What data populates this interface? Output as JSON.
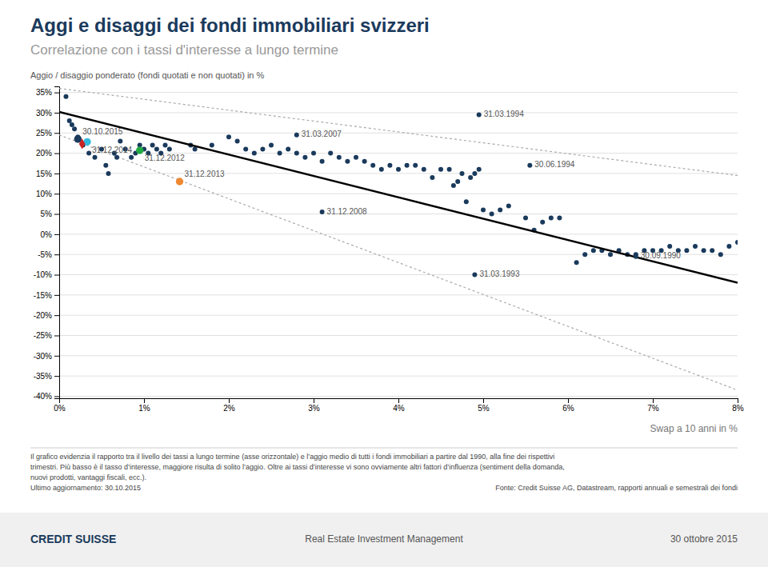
{
  "chart_data": {
    "type": "scatter",
    "title": "Aggi e disaggi dei fondi immobiliari svizzeri",
    "subtitle": "Correlazione con i tassi d'interesse a lungo termine",
    "y_label": "Aggio / disaggio ponderato (fondi quotati e non quotati) in %",
    "x_label": "Swap a 10 anni in %",
    "color": "#1a3a5c",
    "x": [
      0.08,
      0.12,
      0.15,
      0.18,
      0.22,
      0.28,
      0.35,
      0.42,
      0.5,
      0.55,
      0.58,
      0.65,
      0.68,
      0.72,
      0.78,
      0.85,
      0.9,
      0.95,
      1.0,
      1.05,
      1.1,
      1.15,
      1.2,
      1.25,
      1.3,
      1.55,
      1.6,
      1.8,
      2.0,
      2.1,
      2.2,
      2.3,
      2.4,
      2.5,
      2.6,
      2.7,
      2.8,
      2.9,
      3.0,
      3.1,
      3.2,
      3.3,
      3.4,
      3.5,
      3.6,
      3.7,
      3.8,
      3.9,
      4.0,
      4.1,
      4.2,
      4.3,
      4.4,
      4.5,
      4.6,
      4.65,
      4.7,
      4.75,
      4.8,
      4.85,
      4.9,
      4.95,
      5.0,
      5.1,
      5.2,
      5.3,
      5.5,
      5.6,
      5.7,
      5.8,
      5.9,
      6.1,
      6.2,
      6.3,
      6.4,
      6.5,
      6.6,
      6.7,
      6.8,
      6.9,
      7.0,
      7.1,
      7.2,
      7.3,
      7.4,
      7.5,
      7.6,
      7.7,
      7.8,
      7.9,
      8.0
    ],
    "values": [
      34,
      28,
      27,
      26,
      24,
      22,
      20,
      19,
      21,
      17,
      15,
      20,
      19,
      23,
      21,
      19,
      20,
      22,
      21,
      20,
      22,
      21,
      20,
      22,
      21,
      22,
      21,
      22,
      24,
      23,
      21,
      20,
      21,
      22,
      20,
      21,
      20,
      19,
      20,
      18,
      20,
      19,
      18,
      19,
      18,
      17,
      16,
      17,
      16,
      17,
      17,
      16,
      14,
      16,
      16,
      12,
      13,
      15,
      8,
      14,
      15,
      16,
      6,
      5,
      6,
      7,
      4,
      1,
      3,
      4,
      4,
      -7,
      -5,
      -4,
      -4,
      -5,
      -4,
      -5,
      -5,
      -4,
      -4,
      -4,
      -3,
      -4,
      -4,
      -3,
      -4,
      -4,
      -5,
      -3,
      -2
    ],
    "series": [
      {
        "type": "line",
        "color": "#000000",
        "line_style": "solid",
        "x": [
          0.0,
          8.0
        ],
        "values": [
          30.2,
          -12.0
        ]
      },
      {
        "type": "line",
        "color": "#aaaaaa",
        "line_style": "dotted",
        "x": [
          0.0,
          8.0
        ],
        "values": [
          36.0,
          14.5
        ]
      },
      {
        "type": "line",
        "color": "#aaaaaa",
        "line_style": "dotted",
        "x": [
          0.0,
          8.0
        ],
        "values": [
          24.5,
          -38.5
        ]
      }
    ],
    "annotations": [
      {
        "x": 4.95,
        "y": 29.5,
        "label": "31.03.1994"
      },
      {
        "x": 2.8,
        "y": 24.5,
        "label": "31.03.2007"
      },
      {
        "x": 5.55,
        "y": 17.0,
        "label": "30.06.1994"
      },
      {
        "x": 3.1,
        "y": 5.5,
        "label": "31.12.2008"
      },
      {
        "x": 6.8,
        "y": -5.5,
        "label": "30.09.1990"
      },
      {
        "x": 4.9,
        "y": -10.0,
        "label": "31.03.1993"
      }
    ],
    "highlights": [
      {
        "x": 0.22,
        "y": 23.5,
        "label": "30.10.2015",
        "color": "#1a3a5c",
        "marker": "circle"
      },
      {
        "x": 0.33,
        "y": 22.8,
        "label": "31.12.2014",
        "color": "#33bbdd",
        "marker": "circle"
      },
      {
        "x": 0.27,
        "y": 22.3,
        "color": "#cc2222",
        "marker": "diamond"
      },
      {
        "x": 0.95,
        "y": 20.7,
        "label": "31.12.2012",
        "color": "#22aa44",
        "marker": "circle"
      },
      {
        "x": 1.42,
        "y": 13.0,
        "label": "31.12.2013",
        "color": "#ee8833",
        "marker": "circle"
      }
    ],
    "xlim": [
      0.0,
      8.0
    ],
    "ylim": [
      -40.5,
      36.5
    ],
    "xticks": [
      {
        "value": 0,
        "label": "0%"
      },
      {
        "value": 1,
        "label": "1%"
      },
      {
        "value": 2,
        "label": "2%"
      },
      {
        "value": 3,
        "label": "3%"
      },
      {
        "value": 4,
        "label": "4%"
      },
      {
        "value": 5,
        "label": "5%"
      },
      {
        "value": 6,
        "label": "6%"
      },
      {
        "value": 7,
        "label": "7%"
      },
      {
        "value": 8,
        "label": "8%"
      }
    ],
    "yticks": [
      {
        "value": -40,
        "label": "-40%"
      },
      {
        "value": -35,
        "label": "-35%"
      },
      {
        "value": -30,
        "label": "-30%"
      },
      {
        "value": -25,
        "label": "-25%"
      },
      {
        "value": -20,
        "label": "-20%"
      },
      {
        "value": -15,
        "label": "-15%"
      },
      {
        "value": -10,
        "label": "-10%"
      },
      {
        "value": -5,
        "label": "-5%"
      },
      {
        "value": 0,
        "label": "0%"
      },
      {
        "value": 5,
        "label": "5%"
      },
      {
        "value": 10,
        "label": "10%"
      },
      {
        "value": 15,
        "label": "15%"
      },
      {
        "value": 20,
        "label": "20%"
      },
      {
        "value": 25,
        "label": "25%"
      },
      {
        "value": 30,
        "label": "30%"
      },
      {
        "value": 35,
        "label": "35%"
      }
    ],
    "grid": "y",
    "footer_notes": [
      "Il grafico evidenzia il rapporto tra il livello dei tassi a lungo termine (asse orizzontale) e l’aggio medio di tutti i fondi immobiliari a partire dal 1990, alla fine dei rispettivi",
      "trimestri. Più basso è il tasso d’interesse, maggiore risulta di solito l’aggio. Oltre ai tassi d’interesse vi sono ovviamente altri fattori d’influenza (sentiment della domanda,",
      "nuovi prodotti, vantaggi fiscali, ecc.).",
      "Ultimo aggiornamento: 30.10.2015"
    ],
    "source": "Fonte: Credit Suisse AG, Datastream, rapporti annuali e semestrali dei fondi",
    "footer_center": "Real Estate Investment Management",
    "footer_date": "30 ottobre 2015",
    "logo": "CREDIT SUISSE"
  }
}
